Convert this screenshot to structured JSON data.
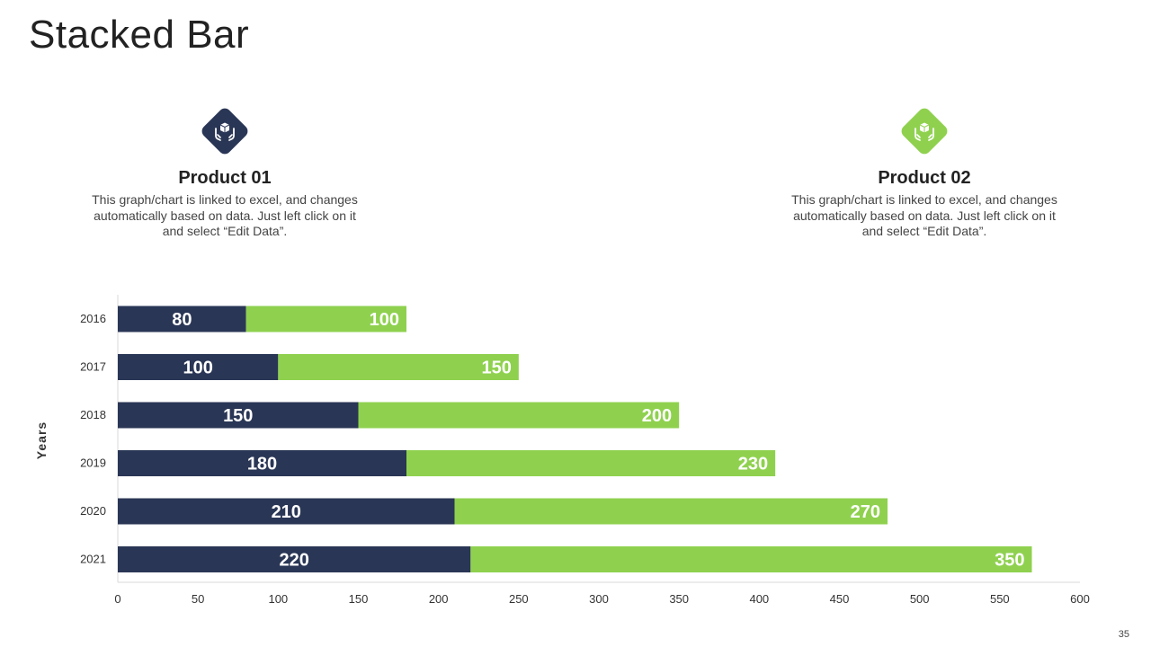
{
  "page": {
    "title": "Stacked Bar",
    "page_number": "35"
  },
  "products": [
    {
      "name": "Product 01",
      "description": "This graph/chart is linked to excel, and changes automatically based on data. Just left click on it and select “Edit Data”.",
      "icon": "hands-box-icon",
      "color": "#2a3655"
    },
    {
      "name": "Product 02",
      "description": "This graph/chart is linked to excel, and changes automatically based on data. Just left click on it and select “Edit Data”.",
      "icon": "hands-box-icon",
      "color": "#8fd14f"
    }
  ],
  "chart_data": {
    "type": "bar",
    "orientation": "horizontal",
    "stacked": true,
    "title": "",
    "xlabel": "",
    "ylabel": "Years",
    "categories": [
      "2016",
      "2017",
      "2018",
      "2019",
      "2020",
      "2021"
    ],
    "series": [
      {
        "name": "Product 01",
        "values": [
          80,
          100,
          150,
          180,
          210,
          220
        ],
        "color": "#2a3655"
      },
      {
        "name": "Product 02",
        "values": [
          100,
          150,
          200,
          230,
          270,
          350
        ],
        "color": "#8fd14f"
      }
    ],
    "xlim": [
      0,
      600
    ],
    "xticks": [
      0,
      50,
      100,
      150,
      200,
      250,
      300,
      350,
      400,
      450,
      500,
      550,
      600
    ],
    "grid": false
  }
}
